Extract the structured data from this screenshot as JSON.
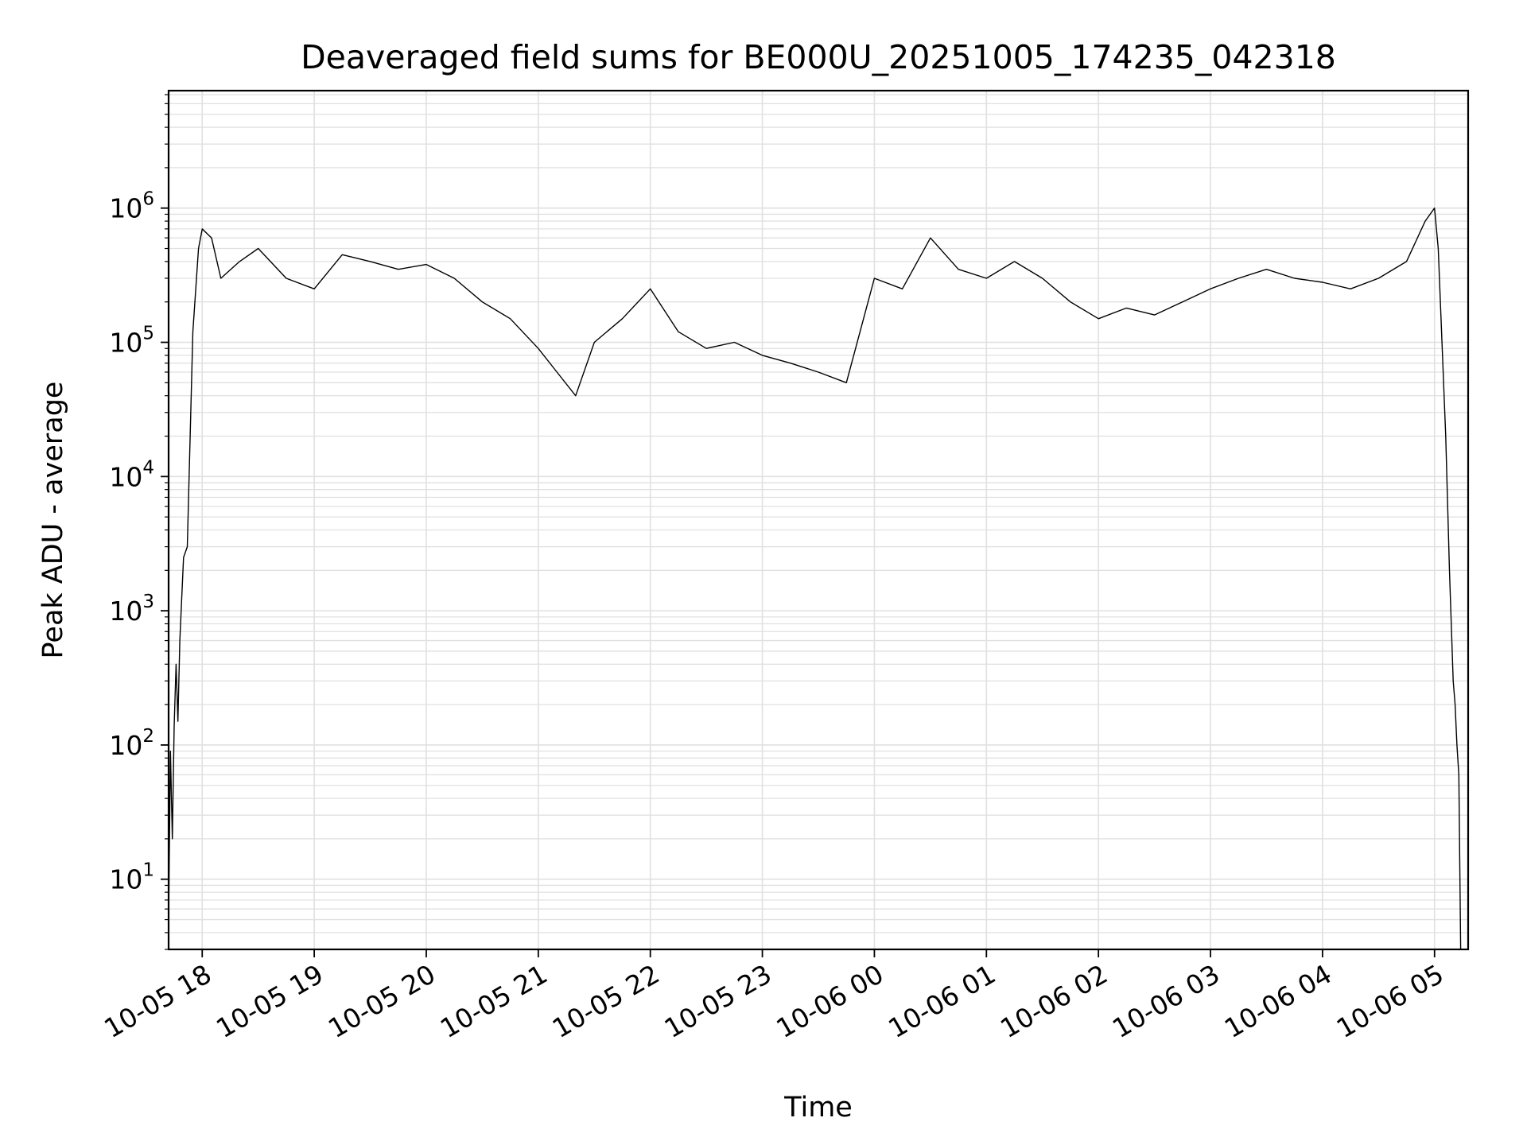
{
  "chart_data": {
    "type": "line",
    "title": "Deaveraged field sums for BE000U_20251005_174235_042318",
    "xlabel": "Time",
    "ylabel": "Peak ADU - average",
    "yscale": "log",
    "ylim": [
      3,
      7500000
    ],
    "xlim": [
      "2025-10-05 17:42",
      "2025-10-06 05:18"
    ],
    "grid": true,
    "line_color": "#000000",
    "grid_color": "#e0e0e0",
    "x_ticks": [
      {
        "t": "2025-10-05 18:00",
        "label": "10-05 18"
      },
      {
        "t": "2025-10-05 19:00",
        "label": "10-05 19"
      },
      {
        "t": "2025-10-05 20:00",
        "label": "10-05 20"
      },
      {
        "t": "2025-10-05 21:00",
        "label": "10-05 21"
      },
      {
        "t": "2025-10-05 22:00",
        "label": "10-05 22"
      },
      {
        "t": "2025-10-05 23:00",
        "label": "10-05 23"
      },
      {
        "t": "2025-10-06 00:00",
        "label": "10-06 00"
      },
      {
        "t": "2025-10-06 01:00",
        "label": "10-06 01"
      },
      {
        "t": "2025-10-06 02:00",
        "label": "10-06 02"
      },
      {
        "t": "2025-10-06 03:00",
        "label": "10-06 03"
      },
      {
        "t": "2025-10-06 04:00",
        "label": "10-06 04"
      },
      {
        "t": "2025-10-06 05:00",
        "label": "10-06 05"
      }
    ],
    "y_ticks": [
      {
        "value": 10,
        "base": "10",
        "exp": "1"
      },
      {
        "value": 100,
        "base": "10",
        "exp": "2"
      },
      {
        "value": 1000,
        "base": "10",
        "exp": "3"
      },
      {
        "value": 10000,
        "base": "10",
        "exp": "4"
      },
      {
        "value": 100000,
        "base": "10",
        "exp": "5"
      },
      {
        "value": 1000000,
        "base": "10",
        "exp": "6"
      }
    ],
    "series": [
      {
        "x": [
          "2025-10-05 17:42",
          "2025-10-05 17:43",
          "2025-10-05 17:44",
          "2025-10-05 17:45",
          "2025-10-05 17:46",
          "2025-10-05 17:47",
          "2025-10-05 17:48",
          "2025-10-05 17:50",
          "2025-10-05 17:52",
          "2025-10-05 17:55",
          "2025-10-05 17:58",
          "2025-10-05 18:00",
          "2025-10-05 18:05",
          "2025-10-05 18:10",
          "2025-10-05 18:20",
          "2025-10-05 18:30",
          "2025-10-05 18:45",
          "2025-10-05 19:00",
          "2025-10-05 19:15",
          "2025-10-05 19:30",
          "2025-10-05 19:45",
          "2025-10-05 20:00",
          "2025-10-05 20:15",
          "2025-10-05 20:30",
          "2025-10-05 20:45",
          "2025-10-05 21:00",
          "2025-10-05 21:10",
          "2025-10-05 21:20",
          "2025-10-05 21:30",
          "2025-10-05 21:45",
          "2025-10-05 22:00",
          "2025-10-05 22:15",
          "2025-10-05 22:30",
          "2025-10-05 22:45",
          "2025-10-05 23:00",
          "2025-10-05 23:15",
          "2025-10-05 23:30",
          "2025-10-05 23:45",
          "2025-10-06 00:00",
          "2025-10-06 00:15",
          "2025-10-06 00:30",
          "2025-10-06 00:45",
          "2025-10-06 01:00",
          "2025-10-06 01:15",
          "2025-10-06 01:30",
          "2025-10-06 01:45",
          "2025-10-06 02:00",
          "2025-10-06 02:15",
          "2025-10-06 02:30",
          "2025-10-06 02:45",
          "2025-10-06 03:00",
          "2025-10-06 03:15",
          "2025-10-06 03:30",
          "2025-10-06 03:45",
          "2025-10-06 04:00",
          "2025-10-06 04:15",
          "2025-10-06 04:30",
          "2025-10-06 04:45",
          "2025-10-06 04:55",
          "2025-10-06 05:00",
          "2025-10-06 05:02",
          "2025-10-06 05:04",
          "2025-10-06 05:06",
          "2025-10-06 05:08",
          "2025-10-06 05:10",
          "2025-10-06 05:11",
          "2025-10-06 05:12",
          "2025-10-06 05:13",
          "2025-10-06 05:14"
        ],
        "y": [
          5,
          90,
          20,
          140,
          400,
          150,
          600,
          2500,
          3000,
          120000,
          500000,
          700000,
          600000,
          300000,
          400000,
          500000,
          300000,
          250000,
          450000,
          400000,
          350000,
          380000,
          300000,
          200000,
          150000,
          90000,
          60000,
          40000,
          100000,
          150000,
          250000,
          120000,
          90000,
          100000,
          80000,
          70000,
          60000,
          50000,
          300000,
          250000,
          600000,
          350000,
          300000,
          400000,
          300000,
          200000,
          150000,
          180000,
          160000,
          200000,
          250000,
          300000,
          350000,
          300000,
          280000,
          250000,
          300000,
          400000,
          800000,
          1000000,
          500000,
          100000,
          20000,
          2000,
          300,
          200,
          100,
          60,
          3
        ]
      }
    ]
  }
}
